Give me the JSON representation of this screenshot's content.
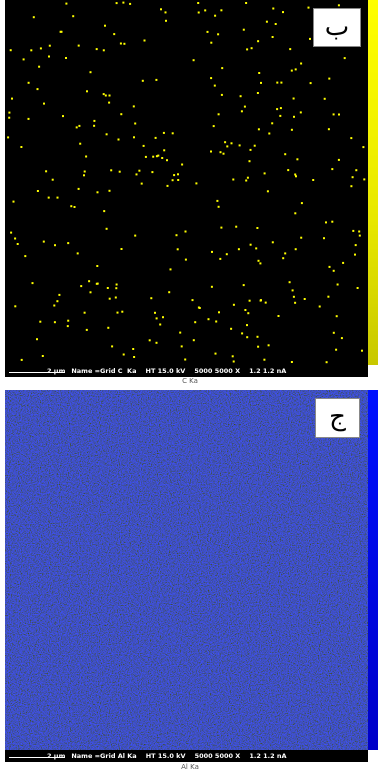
{
  "panels": [
    {
      "label": "ب",
      "scale": "2 µm",
      "info": "Name =Grid C  Ka    HT 15.0 kV    5000 5000 X    1.2 1.2 nA",
      "caption": "C Ka"
    },
    {
      "label": "ج",
      "scale": "2 µm",
      "info": "Name =Grid Al Ka    HT 15.0 kV    5000 5000 X    1.2 1.2 nA",
      "caption": "Al Ka"
    }
  ]
}
